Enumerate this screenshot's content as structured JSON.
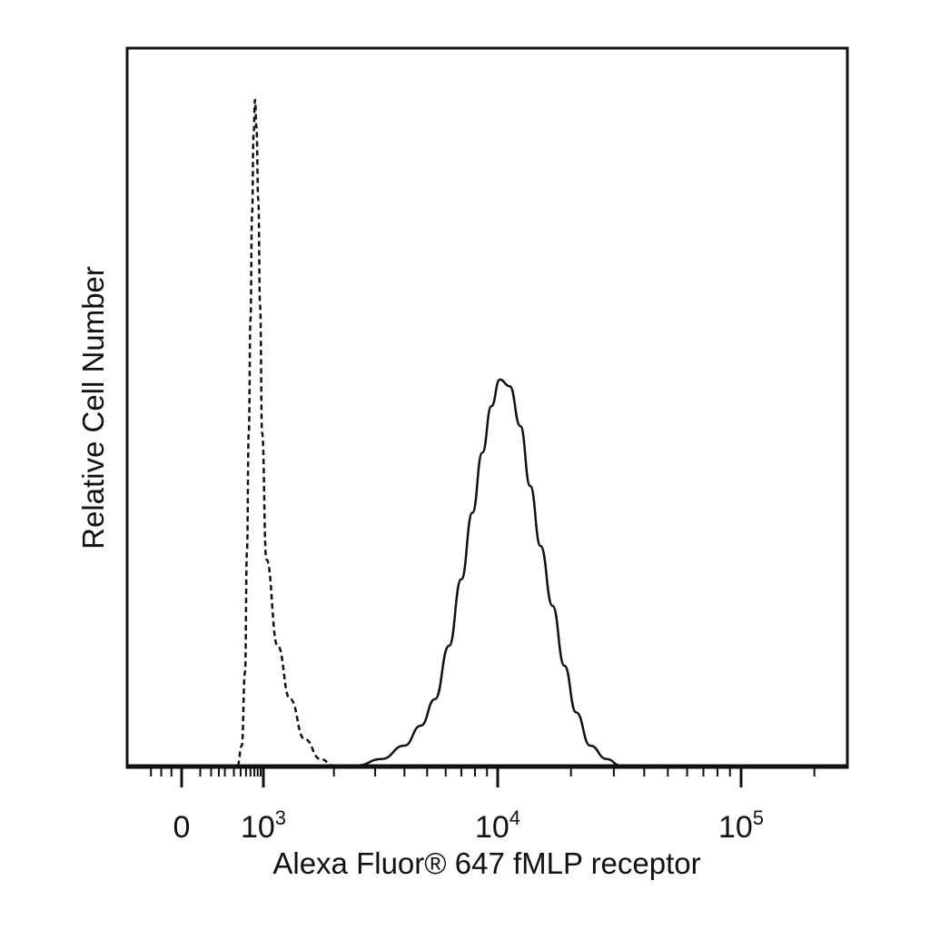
{
  "chart_data": {
    "type": "area",
    "xlabel": "Alexa Fluor® 647 fMLP receptor",
    "ylabel": "Relative Cell Number",
    "x_scale": "biexponential",
    "x_ticks": [
      {
        "value": 0,
        "base": "0",
        "exp": ""
      },
      {
        "value": 1000,
        "base": "10",
        "exp": "3"
      },
      {
        "value": 10000,
        "base": "10",
        "exp": "4"
      },
      {
        "value": 100000,
        "base": "10",
        "exp": "5"
      }
    ],
    "xlim": [
      -200,
      260000
    ],
    "ylim": [
      0,
      1.0
    ],
    "grid": false,
    "series": [
      {
        "style": "dashed",
        "color": "#111111",
        "points": [
          [
            350,
            0.0
          ],
          [
            420,
            0.03
          ],
          [
            480,
            0.14
          ],
          [
            520,
            0.32
          ],
          [
            560,
            0.5
          ],
          [
            600,
            0.67
          ],
          [
            640,
            0.83
          ],
          [
            680,
            0.95
          ],
          [
            720,
            1.0
          ],
          [
            760,
            0.96
          ],
          [
            820,
            0.85
          ],
          [
            880,
            0.69
          ],
          [
            950,
            0.5
          ],
          [
            1030,
            0.31
          ],
          [
            1150,
            0.18
          ],
          [
            1300,
            0.1
          ],
          [
            1500,
            0.04
          ],
          [
            1750,
            0.01
          ],
          [
            2000,
            0.0
          ]
        ]
      },
      {
        "style": "solid",
        "color": "#111111",
        "points": [
          [
            2500,
            0.0
          ],
          [
            3200,
            0.01
          ],
          [
            4000,
            0.03
          ],
          [
            4700,
            0.06
          ],
          [
            5400,
            0.1
          ],
          [
            6200,
            0.18
          ],
          [
            7000,
            0.28
          ],
          [
            7800,
            0.38
          ],
          [
            8600,
            0.47
          ],
          [
            9400,
            0.54
          ],
          [
            10200,
            0.58
          ],
          [
            11200,
            0.57
          ],
          [
            12400,
            0.51
          ],
          [
            13600,
            0.42
          ],
          [
            15000,
            0.33
          ],
          [
            16800,
            0.24
          ],
          [
            18800,
            0.15
          ],
          [
            21000,
            0.08
          ],
          [
            24000,
            0.03
          ],
          [
            28000,
            0.01
          ],
          [
            32000,
            0.0
          ]
        ]
      }
    ]
  }
}
